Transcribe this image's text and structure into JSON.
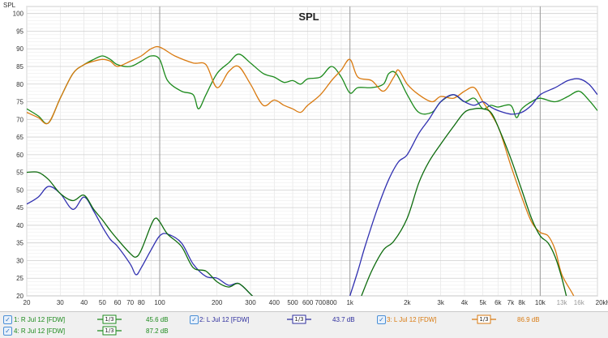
{
  "chart_data": {
    "type": "line",
    "title": "SPL",
    "ylabel": "SPL",
    "y_ticks": [
      "20",
      "25",
      "30",
      "35",
      "40",
      "45",
      "50",
      "55",
      "60",
      "65",
      "70",
      "75",
      "80",
      "85",
      "90",
      "95",
      "100"
    ],
    "ylim": [
      20,
      102
    ],
    "xlim": [
      20,
      20000
    ],
    "x_scale": "log",
    "x_ticks": [
      {
        "v": 20,
        "label": "20"
      },
      {
        "v": 30,
        "label": "30"
      },
      {
        "v": 40,
        "label": "40"
      },
      {
        "v": 50,
        "label": "50"
      },
      {
        "v": 60,
        "label": "60"
      },
      {
        "v": 70,
        "label": "70"
      },
      {
        "v": 80,
        "label": "80"
      },
      {
        "v": 100,
        "label": "100"
      },
      {
        "v": 200,
        "label": "200"
      },
      {
        "v": 300,
        "label": "300"
      },
      {
        "v": 400,
        "label": "400"
      },
      {
        "v": 500,
        "label": "500"
      },
      {
        "v": 600,
        "label": "600"
      },
      {
        "v": 700,
        "label": "700"
      },
      {
        "v": 800,
        "label": "800"
      },
      {
        "v": 1000,
        "label": "1k"
      },
      {
        "v": 2000,
        "label": "2k"
      },
      {
        "v": 3000,
        "label": "3k"
      },
      {
        "v": 4000,
        "label": "4k"
      },
      {
        "v": 5000,
        "label": "5k"
      },
      {
        "v": 6000,
        "label": "6k"
      },
      {
        "v": 7000,
        "label": "7k"
      },
      {
        "v": 8000,
        "label": "8k"
      },
      {
        "v": 10000,
        "label": "10k"
      },
      {
        "v": 13000,
        "label": "13k"
      },
      {
        "v": 16000,
        "label": "16k"
      },
      {
        "v": 20000,
        "label": "20kHz"
      }
    ],
    "grid": true,
    "series": [
      {
        "name": "1: R Jul 12 [FDW]",
        "color": "#1c8a1c",
        "points": [
          [
            20,
            73
          ],
          [
            23,
            71
          ],
          [
            26,
            69
          ],
          [
            30,
            76
          ],
          [
            35,
            83
          ],
          [
            40,
            85.5
          ],
          [
            45,
            87
          ],
          [
            50,
            88
          ],
          [
            55,
            87
          ],
          [
            60,
            85.5
          ],
          [
            70,
            85
          ],
          [
            80,
            86.5
          ],
          [
            90,
            88
          ],
          [
            100,
            87
          ],
          [
            110,
            81
          ],
          [
            130,
            78
          ],
          [
            150,
            77
          ],
          [
            160,
            73
          ],
          [
            175,
            77
          ],
          [
            200,
            83
          ],
          [
            230,
            86
          ],
          [
            260,
            88.5
          ],
          [
            300,
            86
          ],
          [
            350,
            83
          ],
          [
            400,
            82
          ],
          [
            450,
            80.5
          ],
          [
            500,
            81
          ],
          [
            550,
            80
          ],
          [
            600,
            81.5
          ],
          [
            700,
            82
          ],
          [
            800,
            85
          ],
          [
            900,
            82
          ],
          [
            1000,
            77.5
          ],
          [
            1100,
            79
          ],
          [
            1300,
            79
          ],
          [
            1500,
            80
          ],
          [
            1600,
            83
          ],
          [
            1750,
            83
          ],
          [
            2000,
            77
          ],
          [
            2300,
            72
          ],
          [
            2700,
            72
          ],
          [
            3000,
            75
          ],
          [
            3500,
            77
          ],
          [
            4000,
            75
          ],
          [
            4500,
            76
          ],
          [
            5000,
            73
          ],
          [
            5500,
            74
          ],
          [
            6000,
            73.5
          ],
          [
            7000,
            74
          ],
          [
            7500,
            70.5
          ],
          [
            8000,
            73
          ],
          [
            9000,
            75
          ],
          [
            10000,
            76
          ],
          [
            12000,
            75
          ],
          [
            14000,
            76.5
          ],
          [
            16000,
            78
          ],
          [
            18000,
            75.5
          ],
          [
            20000,
            72.5
          ]
        ]
      },
      {
        "name": "2: L Jul 12 [FDW]",
        "color": "#d97a10",
        "points": [
          [
            20,
            72
          ],
          [
            23,
            70.5
          ],
          [
            26,
            69
          ],
          [
            30,
            76
          ],
          [
            35,
            83
          ],
          [
            40,
            85.5
          ],
          [
            45,
            86.5
          ],
          [
            50,
            87
          ],
          [
            55,
            86.5
          ],
          [
            60,
            85
          ],
          [
            70,
            86.5
          ],
          [
            80,
            88
          ],
          [
            90,
            90
          ],
          [
            100,
            90.5
          ],
          [
            120,
            88
          ],
          [
            150,
            86
          ],
          [
            175,
            85.5
          ],
          [
            200,
            79
          ],
          [
            230,
            83.5
          ],
          [
            260,
            85
          ],
          [
            300,
            80
          ],
          [
            350,
            74
          ],
          [
            400,
            75.5
          ],
          [
            450,
            74
          ],
          [
            500,
            73
          ],
          [
            550,
            72
          ],
          [
            600,
            74
          ],
          [
            700,
            77
          ],
          [
            800,
            81
          ],
          [
            900,
            84
          ],
          [
            1000,
            87
          ],
          [
            1100,
            82
          ],
          [
            1300,
            81
          ],
          [
            1500,
            78
          ],
          [
            1700,
            82
          ],
          [
            1800,
            84
          ],
          [
            2000,
            80
          ],
          [
            2300,
            77
          ],
          [
            2700,
            75
          ],
          [
            3000,
            76.5
          ],
          [
            3500,
            76
          ],
          [
            4000,
            78
          ],
          [
            4500,
            79
          ],
          [
            5000,
            75
          ],
          [
            6000,
            68
          ],
          [
            7000,
            57
          ],
          [
            8000,
            48
          ],
          [
            9000,
            41
          ],
          [
            10000,
            38
          ],
          [
            11000,
            37
          ],
          [
            12000,
            33
          ],
          [
            13000,
            26
          ],
          [
            15000,
            20
          ],
          [
            16000,
            16
          ]
        ]
      },
      {
        "name": "3: L Jul 12 [FDW]",
        "color": "#3030b0",
        "points": [
          [
            20,
            46
          ],
          [
            23,
            48
          ],
          [
            26,
            51
          ],
          [
            30,
            49
          ],
          [
            35,
            44.5
          ],
          [
            40,
            48
          ],
          [
            45,
            44
          ],
          [
            50,
            39.5
          ],
          [
            55,
            36
          ],
          [
            60,
            34
          ],
          [
            70,
            29
          ],
          [
            75,
            26
          ],
          [
            80,
            28
          ],
          [
            90,
            33
          ],
          [
            100,
            37
          ],
          [
            110,
            37.5
          ],
          [
            130,
            35
          ],
          [
            150,
            29
          ],
          [
            175,
            25.5
          ],
          [
            200,
            25
          ],
          [
            230,
            23
          ],
          [
            260,
            23.5
          ],
          [
            300,
            20.5
          ],
          [
            320,
            19
          ],
          [
            1000,
            20
          ],
          [
            1100,
            27
          ],
          [
            1200,
            34
          ],
          [
            1400,
            45
          ],
          [
            1600,
            53
          ],
          [
            1800,
            58
          ],
          [
            2000,
            60
          ],
          [
            2300,
            66
          ],
          [
            2600,
            70
          ],
          [
            3000,
            75
          ],
          [
            3500,
            77
          ],
          [
            4000,
            75
          ],
          [
            4500,
            74
          ],
          [
            5000,
            75
          ],
          [
            5500,
            73.5
          ],
          [
            6000,
            72.5
          ],
          [
            7000,
            71.5
          ],
          [
            8000,
            72
          ],
          [
            9000,
            74
          ],
          [
            10000,
            77
          ],
          [
            12000,
            79
          ],
          [
            14000,
            81
          ],
          [
            16000,
            81.5
          ],
          [
            18000,
            80
          ],
          [
            20000,
            77
          ]
        ]
      },
      {
        "name": "4: R Jul 12 [FDW]",
        "color": "#0d6b0d",
        "points": [
          [
            20,
            55
          ],
          [
            23,
            55
          ],
          [
            26,
            53
          ],
          [
            30,
            49
          ],
          [
            35,
            47
          ],
          [
            40,
            48.5
          ],
          [
            45,
            44.5
          ],
          [
            50,
            41.5
          ],
          [
            55,
            38.5
          ],
          [
            60,
            36
          ],
          [
            70,
            32
          ],
          [
            75,
            31
          ],
          [
            80,
            33
          ],
          [
            90,
            40
          ],
          [
            95,
            42
          ],
          [
            100,
            41
          ],
          [
            110,
            37.5
          ],
          [
            130,
            34
          ],
          [
            150,
            28
          ],
          [
            175,
            27
          ],
          [
            200,
            24
          ],
          [
            230,
            22.5
          ],
          [
            260,
            23.5
          ],
          [
            300,
            20.5
          ],
          [
            320,
            19
          ],
          [
            1150,
            20
          ],
          [
            1300,
            27
          ],
          [
            1500,
            33
          ],
          [
            1700,
            35.5
          ],
          [
            2000,
            42
          ],
          [
            2300,
            52
          ],
          [
            2600,
            58
          ],
          [
            3000,
            63
          ],
          [
            3500,
            68
          ],
          [
            4000,
            72
          ],
          [
            4500,
            73
          ],
          [
            5000,
            73
          ],
          [
            5500,
            72
          ],
          [
            6000,
            68
          ],
          [
            7000,
            59
          ],
          [
            8000,
            50
          ],
          [
            9000,
            42
          ],
          [
            10000,
            37
          ],
          [
            11000,
            35
          ],
          [
            12000,
            31
          ],
          [
            13000,
            25
          ],
          [
            14000,
            18
          ]
        ]
      }
    ]
  },
  "legend": {
    "items": [
      {
        "name": "1: R Jul 12 [FDW]",
        "smoothing": "1/3",
        "value": "45.6 dB",
        "color": "#1c8a1c",
        "checked": "✓"
      },
      {
        "name": "2: L Jul 12 [FDW]",
        "smoothing": "1/3",
        "value": "43.7 dB",
        "color": "#2e2e9e",
        "checked": "✓"
      },
      {
        "name": "3: L Jul 12 [FDW]",
        "smoothing": "1/3",
        "value": "86.9 dB",
        "color": "#d97a10",
        "checked": "✓"
      },
      {
        "name": "4: R Jul 12 [FDW]",
        "smoothing": "1/3",
        "value": "87.2 dB",
        "color": "#1c8a1c",
        "checked": "✓"
      }
    ]
  }
}
